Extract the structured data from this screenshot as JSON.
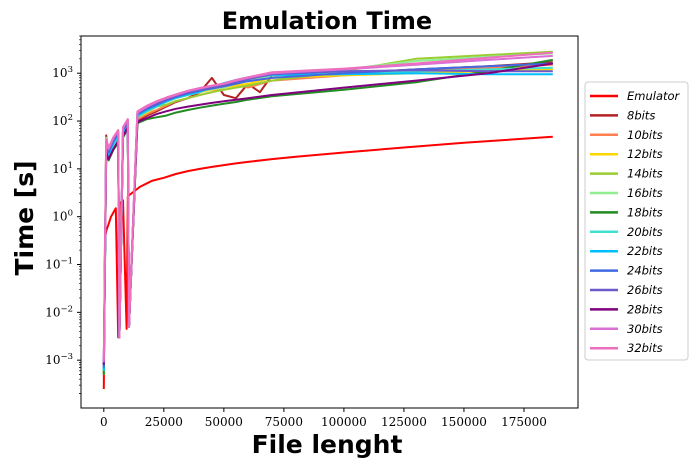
{
  "chart_data": {
    "type": "line",
    "title": "Emulation Time",
    "xlabel": "File lenght",
    "ylabel": "Time [s]",
    "xscale": "linear",
    "yscale": "log",
    "xlim": [
      -9500,
      197500
    ],
    "ylim": [
      0.0001,
      6000
    ],
    "grid": false,
    "legend_position": "right",
    "x_ticks": [
      0,
      25000,
      50000,
      75000,
      100000,
      125000,
      150000,
      175000
    ],
    "x_tick_labels": [
      "0",
      "25000",
      "50000",
      "75000",
      "100000",
      "125000",
      "150000",
      "175000"
    ],
    "y_ticks": [
      0.001,
      0.01,
      0.1,
      1,
      10,
      100,
      1000
    ],
    "y_tick_labels": [
      {
        "base": "10",
        "exp": "−3"
      },
      {
        "base": "10",
        "exp": "−2"
      },
      {
        "base": "10",
        "exp": "−1"
      },
      {
        "base": "10",
        "exp": "0"
      },
      {
        "base": "10",
        "exp": "1"
      },
      {
        "base": "10",
        "exp": "2"
      },
      {
        "base": "10",
        "exp": "3"
      }
    ],
    "series": [
      {
        "name": "Emulator",
        "color": "#ff0000",
        "x": [
          0,
          500,
          1000,
          2000,
          3000,
          5000,
          6000,
          6500,
          7000,
          8000,
          9500,
          10000,
          10500,
          12000,
          15000,
          18000,
          20000,
          25000,
          30000,
          35000,
          40000,
          45000,
          50000,
          55000,
          60000,
          70000,
          80000,
          100000,
          125000,
          150000,
          187000
        ],
        "y": [
          0.00025,
          0.35,
          0.5,
          0.7,
          1.0,
          1.5,
          0.003,
          1.8,
          2.0,
          2.2,
          0.0045,
          2.6,
          2.8,
          3.2,
          4.2,
          5.0,
          5.6,
          6.5,
          7.8,
          9.0,
          10,
          11,
          12,
          13,
          14,
          16,
          18,
          22,
          28,
          35,
          47
        ]
      },
      {
        "name": "8bits",
        "color": "#b22222",
        "x": [
          0,
          1000,
          2000,
          4000,
          6000,
          6500,
          8000,
          10000,
          10500,
          14000,
          18000,
          22000,
          26000,
          30000,
          35000,
          40000,
          45000,
          50000,
          55000,
          60000,
          65000,
          70000,
          100000,
          130000,
          160000,
          187000
        ],
        "y": [
          0.0005,
          50,
          20,
          30,
          40,
          0.003,
          50,
          80,
          0.005,
          100,
          130,
          160,
          200,
          250,
          300,
          400,
          800,
          350,
          300,
          600,
          400,
          900,
          1000,
          1200,
          1400,
          1700
        ]
      },
      {
        "name": "10bits",
        "color": "#ff7f50",
        "x": [
          0,
          1000,
          2000,
          4000,
          6000,
          6500,
          8000,
          10000,
          10500,
          14000,
          18000,
          22000,
          26000,
          30000,
          35000,
          40000,
          45000,
          50000,
          55000,
          60000,
          70000,
          100000,
          130000,
          160000,
          187000
        ],
        "y": [
          0.0005,
          40,
          18,
          28,
          45,
          0.003,
          55,
          85,
          0.005,
          110,
          140,
          170,
          210,
          260,
          300,
          350,
          400,
          500,
          600,
          500,
          700,
          900,
          1100,
          1300,
          1500
        ]
      },
      {
        "name": "12bits",
        "color": "#ffd700",
        "x": [
          0,
          1000,
          2000,
          4000,
          6000,
          6500,
          8000,
          10000,
          10500,
          14000,
          18000,
          22000,
          26000,
          30000,
          35000,
          40000,
          45000,
          50000,
          55000,
          60000,
          70000,
          100000,
          130000,
          160000,
          187000
        ],
        "y": [
          0.0005,
          35,
          20,
          30,
          50,
          0.003,
          60,
          90,
          0.005,
          120,
          150,
          200,
          250,
          300,
          350,
          400,
          450,
          500,
          550,
          600,
          800,
          900,
          1000,
          1100,
          1200
        ]
      },
      {
        "name": "14bits",
        "color": "#9acd32",
        "x": [
          0,
          1000,
          2000,
          4000,
          6000,
          6500,
          8000,
          10000,
          10500,
          14000,
          18000,
          22000,
          26000,
          30000,
          35000,
          40000,
          45000,
          50000,
          55000,
          60000,
          70000,
          100000,
          130000,
          160000,
          187000
        ],
        "y": [
          0.0005,
          30,
          22,
          35,
          55,
          0.003,
          65,
          95,
          0.005,
          130,
          160,
          200,
          220,
          260,
          300,
          350,
          400,
          450,
          500,
          550,
          700,
          1100,
          2000,
          2400,
          2800
        ]
      },
      {
        "name": "16bits",
        "color": "#90ee90",
        "x": [
          0,
          1000,
          2000,
          4000,
          6000,
          6500,
          8000,
          10000,
          10500,
          14000,
          18000,
          22000,
          26000,
          30000,
          35000,
          40000,
          45000,
          50000,
          55000,
          60000,
          70000,
          100000,
          130000,
          160000,
          187000
        ],
        "y": [
          0.0005,
          45,
          25,
          40,
          60,
          0.003,
          70,
          100,
          0.005,
          140,
          170,
          220,
          270,
          320,
          380,
          420,
          460,
          500,
          600,
          700,
          900,
          1200,
          1800,
          2200,
          2600
        ]
      },
      {
        "name": "18bits",
        "color": "#228b22",
        "x": [
          0,
          1000,
          2000,
          4000,
          6000,
          6500,
          8000,
          10000,
          10500,
          14000,
          18000,
          22000,
          26000,
          30000,
          35000,
          40000,
          45000,
          50000,
          55000,
          60000,
          70000,
          100000,
          130000,
          160000,
          187000
        ],
        "y": [
          0.0005,
          20,
          15,
          25,
          35,
          0.003,
          45,
          70,
          0.005,
          90,
          110,
          120,
          130,
          150,
          170,
          190,
          210,
          230,
          250,
          280,
          330,
          450,
          650,
          1100,
          1900
        ]
      },
      {
        "name": "20bits",
        "color": "#40e0d0",
        "x": [
          0,
          1000,
          2000,
          4000,
          6000,
          6500,
          8000,
          10000,
          10500,
          14000,
          18000,
          22000,
          26000,
          30000,
          35000,
          40000,
          45000,
          50000,
          55000,
          60000,
          70000,
          100000,
          130000,
          160000,
          187000
        ],
        "y": [
          0.0006,
          25,
          18,
          30,
          45,
          0.003,
          55,
          85,
          0.005,
          120,
          160,
          200,
          250,
          300,
          350,
          400,
          500,
          600,
          700,
          800,
          900,
          1000,
          1100,
          1200,
          1300
        ]
      },
      {
        "name": "22bits",
        "color": "#00bfff",
        "x": [
          0,
          1000,
          2000,
          4000,
          6000,
          6500,
          8000,
          10000,
          10500,
          14000,
          18000,
          22000,
          26000,
          30000,
          35000,
          40000,
          45000,
          50000,
          55000,
          60000,
          70000,
          100000,
          130000,
          160000,
          187000
        ],
        "y": [
          0.0006,
          30,
          20,
          35,
          50,
          0.003,
          60,
          90,
          0.005,
          130,
          170,
          210,
          260,
          310,
          360,
          410,
          520,
          620,
          720,
          820,
          920,
          950,
          1000,
          950,
          950
        ]
      },
      {
        "name": "24bits",
        "color": "#4169e1",
        "x": [
          0,
          1000,
          2000,
          4000,
          6000,
          6500,
          8000,
          10000,
          10500,
          14000,
          18000,
          22000,
          26000,
          30000,
          35000,
          40000,
          45000,
          50000,
          55000,
          60000,
          70000,
          100000,
          130000,
          160000,
          187000
        ],
        "y": [
          0.0007,
          28,
          22,
          38,
          55,
          0.003,
          65,
          95,
          0.005,
          140,
          180,
          220,
          270,
          320,
          380,
          430,
          480,
          530,
          600,
          680,
          800,
          1000,
          1200,
          1400,
          1600
        ]
      },
      {
        "name": "26bits",
        "color": "#6a5acd",
        "x": [
          0,
          1000,
          2000,
          4000,
          6000,
          6500,
          8000,
          10000,
          10500,
          14000,
          18000,
          22000,
          26000,
          30000,
          35000,
          40000,
          45000,
          50000,
          55000,
          60000,
          70000,
          100000,
          130000,
          160000,
          187000
        ],
        "y": [
          0.0008,
          32,
          24,
          40,
          58,
          0.003,
          68,
          100,
          0.005,
          145,
          190,
          230,
          280,
          330,
          390,
          450,
          500,
          550,
          650,
          750,
          950,
          1100,
          1150,
          1100,
          1100
        ]
      },
      {
        "name": "28bits",
        "color": "#800080",
        "x": [
          0,
          1000,
          2000,
          4000,
          6000,
          6500,
          8000,
          10000,
          10500,
          14000,
          18000,
          22000,
          26000,
          30000,
          35000,
          40000,
          45000,
          50000,
          55000,
          60000,
          70000,
          100000,
          130000,
          160000,
          187000
        ],
        "y": [
          0.0008,
          22,
          16,
          26,
          38,
          0.003,
          48,
          75,
          0.005,
          95,
          115,
          140,
          160,
          180,
          200,
          220,
          240,
          260,
          280,
          300,
          350,
          500,
          700,
          1000,
          1600
        ]
      },
      {
        "name": "30bits",
        "color": "#da70d6",
        "x": [
          0,
          1000,
          2000,
          4000,
          6000,
          6500,
          8000,
          10000,
          10500,
          14000,
          18000,
          22000,
          26000,
          30000,
          35000,
          40000,
          45000,
          50000,
          55000,
          60000,
          70000,
          100000,
          130000,
          160000,
          187000
        ],
        "y": [
          0.0009,
          38,
          26,
          44,
          62,
          0.003,
          72,
          105,
          0.005,
          150,
          200,
          250,
          300,
          350,
          420,
          480,
          540,
          600,
          700,
          800,
          1000,
          1200,
          1500,
          1900,
          2300
        ]
      },
      {
        "name": "32bits",
        "color": "#ee6fbf",
        "x": [
          0,
          1000,
          2000,
          4000,
          6000,
          6500,
          8000,
          10000,
          10500,
          14000,
          18000,
          22000,
          26000,
          30000,
          35000,
          40000,
          45000,
          50000,
          55000,
          60000,
          70000,
          100000,
          130000,
          160000,
          187000
        ],
        "y": [
          0.001,
          42,
          28,
          46,
          65,
          0.003,
          75,
          110,
          0.005,
          160,
          210,
          260,
          310,
          360,
          430,
          490,
          550,
          610,
          720,
          820,
          1050,
          1250,
          1600,
          2100,
          2700
        ]
      }
    ]
  }
}
